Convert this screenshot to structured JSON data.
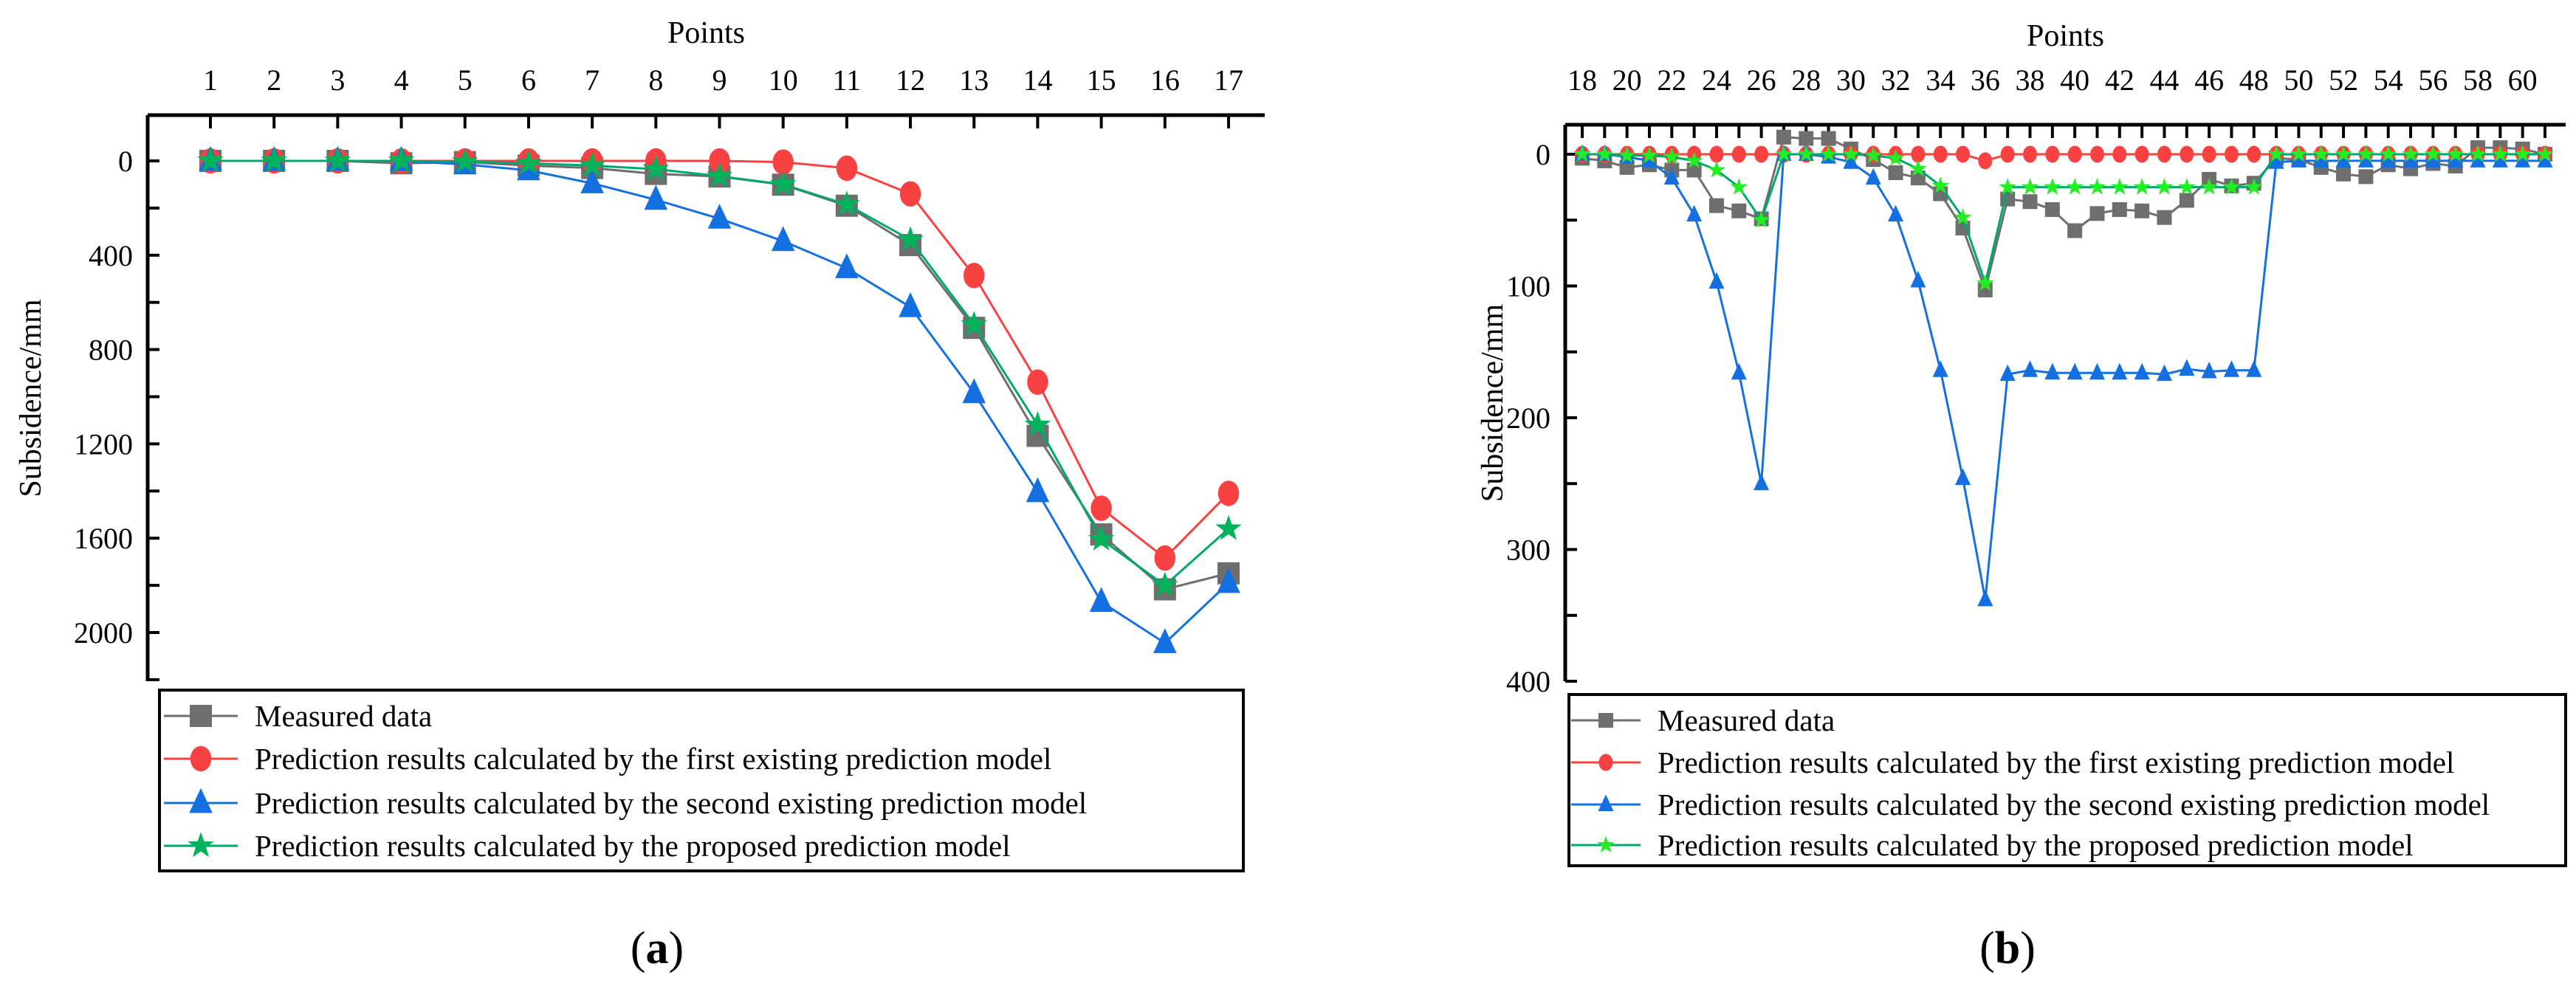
{
  "chart_data": [
    {
      "type": "line",
      "panel_label": "a",
      "xlabel": "Points",
      "ylabel": "Subsidence/mm",
      "x": [
        1,
        2,
        3,
        4,
        5,
        6,
        7,
        8,
        9,
        10,
        11,
        12,
        13,
        14,
        15,
        16,
        17
      ],
      "xticks": [
        1,
        2,
        3,
        4,
        5,
        6,
        7,
        8,
        9,
        10,
        11,
        12,
        13,
        14,
        15,
        16,
        17
      ],
      "yticks": [
        0,
        400,
        800,
        1200,
        1600,
        2000
      ],
      "ylim": [
        -200,
        2200
      ],
      "y_inverted": true,
      "legend_position": "bottom",
      "series": [
        {
          "name": "Measured data",
          "marker": "square",
          "color": "#6e6e6e",
          "marker_color": "#6e6e6e",
          "values": [
            0,
            0,
            0,
            10,
            5,
            20,
            30,
            55,
            66,
            101,
            190,
            357,
            708,
            1166,
            1584,
            1817,
            1749
          ]
        },
        {
          "name": "Prediction results calculated by the first existing prediction model",
          "marker": "circle",
          "color": "#f84242",
          "marker_color": "#f84242",
          "values": [
            0,
            0,
            0,
            0,
            0,
            0,
            0,
            0,
            0,
            5,
            31,
            140,
            486,
            938,
            1473,
            1684,
            1410
          ]
        },
        {
          "name": "Prediction results calculated by the second existing prediction model",
          "marker": "triangle",
          "color": "#1470e0",
          "marker_color": "#1470e0",
          "values": [
            0,
            0,
            0,
            0,
            15,
            40,
            95,
            165,
            245,
            340,
            455,
            620,
            985,
            1405,
            1870,
            2045,
            1790
          ]
        },
        {
          "name": "Prediction results calculated by the proposed prediction model",
          "marker": "star",
          "color": "#00a86b",
          "marker_color": "#00b35a",
          "values": [
            0,
            0,
            0,
            0,
            3,
            10,
            20,
            35,
            65,
            100,
            185,
            335,
            695,
            1120,
            1605,
            1800,
            1560
          ]
        }
      ]
    },
    {
      "type": "line",
      "panel_label": "b",
      "xlabel": "Points",
      "ylabel": "Subsidence/mm",
      "x": [
        18,
        19,
        20,
        21,
        22,
        23,
        24,
        25,
        26,
        27,
        28,
        29,
        30,
        31,
        32,
        33,
        34,
        35,
        36,
        37,
        38,
        39,
        40,
        41,
        42,
        43,
        44,
        45,
        46,
        47,
        48,
        49,
        50,
        51,
        52,
        53,
        54,
        55,
        56,
        57,
        58,
        59,
        60,
        61
      ],
      "xticks": [
        18,
        20,
        22,
        24,
        26,
        28,
        30,
        32,
        34,
        36,
        38,
        40,
        42,
        44,
        46,
        48,
        50,
        52,
        54,
        56,
        58,
        60
      ],
      "yticks": [
        0,
        100,
        200,
        300,
        400
      ],
      "ylim": [
        -22,
        400
      ],
      "y_inverted": true,
      "legend_position": "bottom",
      "series": [
        {
          "name": "Measured data",
          "marker": "square",
          "color": "#6e6e6e",
          "marker_color": "#6e6e6e",
          "values": [
            3,
            5,
            10,
            8,
            12,
            12,
            39,
            43,
            49,
            -13,
            -12,
            -12,
            -4,
            4,
            14,
            18,
            30,
            56,
            103,
            34,
            36,
            42,
            58,
            45,
            42,
            43,
            48,
            35,
            19,
            24,
            22,
            3,
            4,
            10,
            15,
            17,
            8,
            11,
            7,
            9,
            -5,
            -5,
            -4,
            0
          ]
        },
        {
          "name": "Prediction results calculated by the first existing prediction model",
          "marker": "circle",
          "color": "#f84242",
          "marker_color": "#f84242",
          "values": [
            0,
            0,
            0,
            0,
            0,
            0,
            0,
            0,
            0,
            0,
            0,
            0,
            0,
            0,
            0,
            0,
            0,
            0,
            5,
            0,
            0,
            0,
            0,
            0,
            0,
            0,
            0,
            0,
            0,
            0,
            0,
            0,
            0,
            0,
            0,
            0,
            0,
            0,
            0,
            0,
            0,
            0,
            0,
            0
          ]
        },
        {
          "name": "Prediction results calculated by the second existing prediction model",
          "marker": "triangle",
          "color": "#1470e0",
          "marker_color": "#1470e0",
          "values": [
            0,
            0,
            2,
            5,
            18,
            46,
            97,
            166,
            250,
            0,
            0,
            2,
            6,
            18,
            46,
            96,
            164,
            246,
            338,
            167,
            164,
            166,
            166,
            166,
            166,
            166,
            167,
            163,
            165,
            164,
            164,
            6,
            5,
            5,
            5,
            5,
            5,
            5,
            5,
            5,
            5,
            5,
            5,
            5
          ]
        },
        {
          "name": "Prediction results calculated by the proposed prediction model",
          "marker": "star",
          "color": "#00a86b",
          "marker_color": "#22ee22",
          "values": [
            0,
            0,
            1,
            1,
            2,
            5,
            12,
            25,
            50,
            0,
            0,
            0,
            0,
            1,
            3,
            11,
            24,
            48,
            98,
            25,
            25,
            25,
            25,
            25,
            25,
            25,
            25,
            25,
            25,
            25,
            25,
            0,
            0,
            0,
            0,
            0,
            0,
            0,
            0,
            0,
            0,
            0,
            0,
            0
          ]
        }
      ]
    }
  ]
}
